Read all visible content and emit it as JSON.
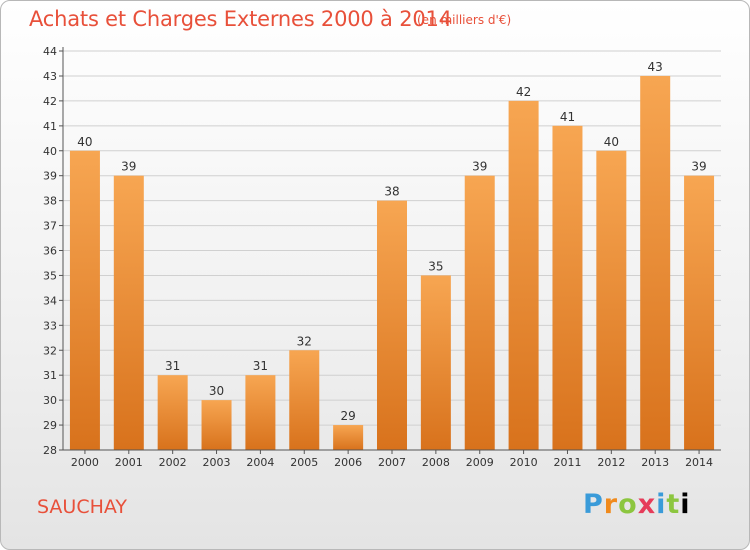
{
  "title": "Achats et Charges Externes 2000 à 2014",
  "unit": "(en milliers d'€)",
  "place": "SAUCHAY",
  "logo": [
    "P",
    "r",
    "o",
    "x",
    "i",
    "t",
    "i"
  ],
  "colors": {
    "accent": "#e8503a",
    "bar_top": "#f7a652",
    "bar_bottom": "#d8721c"
  },
  "chart_data": {
    "type": "bar",
    "categories": [
      "2000",
      "2001",
      "2002",
      "2003",
      "2004",
      "2005",
      "2006",
      "2007",
      "2008",
      "2009",
      "2010",
      "2011",
      "2012",
      "2013",
      "2014"
    ],
    "values": [
      40,
      39,
      31,
      30,
      31,
      32,
      29,
      38,
      35,
      39,
      42,
      41,
      40,
      43,
      39
    ],
    "yticks": [
      28,
      29,
      30,
      31,
      32,
      33,
      34,
      35,
      36,
      37,
      38,
      39,
      40,
      41,
      42,
      43,
      44
    ],
    "ylim": [
      28,
      44
    ],
    "grid": true,
    "data_labels": true
  }
}
